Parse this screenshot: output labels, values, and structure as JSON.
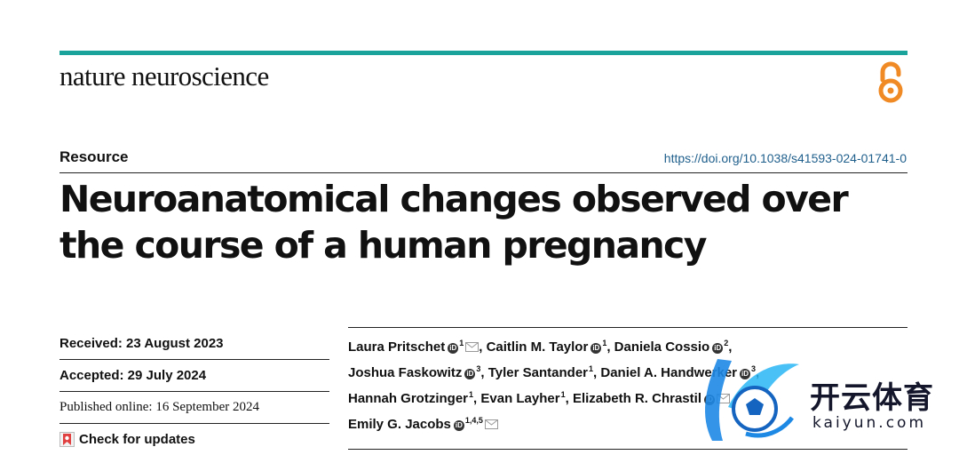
{
  "header": {
    "journal": "nature neuroscience",
    "open_access_icon": "open-access-icon",
    "brand_color": "#1aa39a"
  },
  "article": {
    "type": "Resource",
    "doi": "https://doi.org/10.1038/s41593-024-01741-0",
    "title": "Neuroanatomical changes observed over the course of a human pregnancy"
  },
  "dates": {
    "received": "Received: 23 August 2023",
    "accepted": "Accepted: 29 July 2024",
    "published": "Published online: 16 September 2024",
    "check_updates": "Check for updates"
  },
  "authors": [
    {
      "name": "Laura Pritschet",
      "aff": "1",
      "orcid": true,
      "email": true,
      "sep": ", "
    },
    {
      "name": "Caitlin M. Taylor",
      "aff": "1",
      "orcid": true,
      "email": false,
      "sep": ", "
    },
    {
      "name": "Daniela Cossio",
      "aff": "2",
      "orcid": true,
      "email": false,
      "sep": ","
    },
    {
      "name": "Joshua Faskowitz",
      "aff": "3",
      "orcid": true,
      "email": false,
      "sep": ", "
    },
    {
      "name": "Tyler Santander",
      "aff": "1",
      "orcid": false,
      "email": false,
      "sep": ", "
    },
    {
      "name": "Daniel A. Handwerker",
      "aff": "3",
      "orcid": true,
      "email": false,
      "sep": ","
    },
    {
      "name": "Hannah Grotzinger",
      "aff": "1",
      "orcid": false,
      "email": false,
      "sep": ", "
    },
    {
      "name": "Evan Layher",
      "aff": "1",
      "orcid": false,
      "email": false,
      "sep": ", "
    },
    {
      "name": "Elizabeth R. Chrastil",
      "aff": "",
      "orcid": true,
      "email": true,
      "sep": " & "
    },
    {
      "name": "Emily G. Jacobs",
      "aff": "1,4,5",
      "orcid": true,
      "email": true,
      "sep": ""
    }
  ],
  "watermark": {
    "logo_icon": "kaiyun-logo-icon",
    "text": "开云体育",
    "url": "kaiyun.com"
  }
}
